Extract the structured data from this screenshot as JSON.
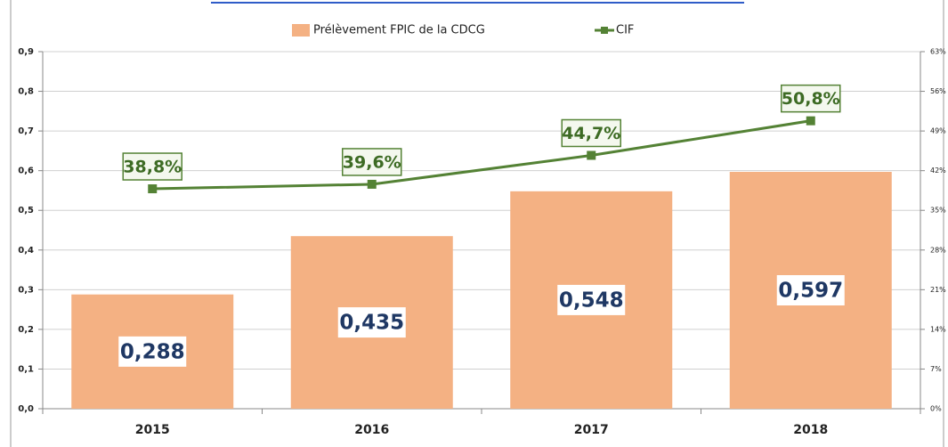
{
  "chart_data": {
    "type": "bar_line",
    "categories": [
      "2015",
      "2016",
      "2017",
      "2018"
    ],
    "series": [
      {
        "name": "Prélèvement FPIC de la CDCG",
        "type": "bar",
        "color": "#f4b183",
        "values": [
          0.288,
          0.435,
          0.548,
          0.597
        ],
        "value_labels": [
          "0,288",
          "0,435",
          "0,548",
          "0,597"
        ]
      },
      {
        "name": "CIF",
        "type": "line",
        "axis": "y2",
        "color": "#548235",
        "values": [
          38.8,
          39.6,
          44.7,
          50.8
        ],
        "value_labels": [
          "38,8%",
          "39,6%",
          "44,7%",
          "50,8%"
        ]
      }
    ],
    "ylim": [
      0,
      0.9
    ],
    "yticks": [
      {
        "value": 0,
        "label": "0,0"
      },
      {
        "value": 0.1,
        "label": "0,1"
      },
      {
        "value": 0.2,
        "label": "0,2"
      },
      {
        "value": 0.3,
        "label": "0,3"
      },
      {
        "value": 0.4,
        "label": "0,4"
      },
      {
        "value": 0.5,
        "label": "0,5"
      },
      {
        "value": 0.6,
        "label": "0,6"
      },
      {
        "value": 0.7,
        "label": "0,7"
      },
      {
        "value": 0.8,
        "label": "0,8"
      },
      {
        "value": 0.9,
        "label": "0,9"
      }
    ],
    "y2lim": [
      0,
      63
    ],
    "y2ticks": [
      {
        "value": 0,
        "label": "0%"
      },
      {
        "value": 7,
        "label": "7%"
      },
      {
        "value": 14,
        "label": "14%"
      },
      {
        "value": 21,
        "label": "21%"
      },
      {
        "value": 28,
        "label": "28%"
      },
      {
        "value": 35,
        "label": "35%"
      },
      {
        "value": 42,
        "label": "42%"
      },
      {
        "value": 49,
        "label": "49%"
      },
      {
        "value": 56,
        "label": "56%"
      },
      {
        "value": 63,
        "label": "63%"
      }
    ],
    "grid": true,
    "legend": "top"
  }
}
